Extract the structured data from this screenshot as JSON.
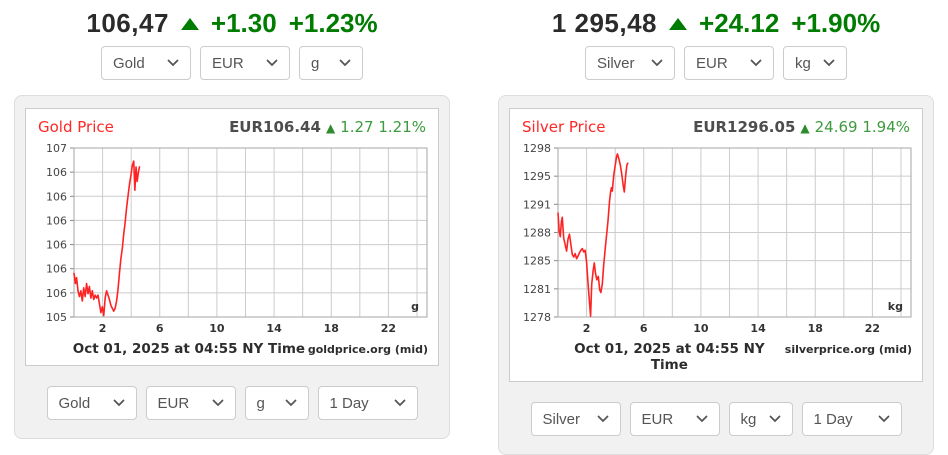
{
  "colors": {
    "quote_green": "#007c00",
    "chart_change_green": "#3d9a3d",
    "chart_title_red": "#ff2626",
    "line_red": "#ff2222",
    "grid_gray": "#cccccc",
    "card_bg": "#f1f1f1"
  },
  "widgets": [
    {
      "id": "gold",
      "quote": {
        "price": "106,47",
        "change": "+1.30",
        "change_pct": "+1.23%"
      },
      "top_selects": [
        "Gold",
        "EUR",
        "g"
      ],
      "bottom_selects": [
        "Gold",
        "EUR",
        "g",
        "1 Day"
      ]
    },
    {
      "id": "silver",
      "quote": {
        "price": "1 295,48",
        "change": "+24.12",
        "change_pct": "+1.90%"
      },
      "top_selects": [
        "Silver",
        "EUR",
        "kg"
      ],
      "bottom_selects": [
        "Silver",
        "EUR",
        "kg",
        "1 Day"
      ]
    }
  ],
  "chart_data": [
    {
      "type": "line",
      "title": "Gold Price",
      "current": "EUR106.44",
      "change": "1.27 1.21%",
      "unit": "g",
      "footer_time": "Oct 01, 2025 at 04:55 NY Time",
      "source": "goldprice.org (mid)",
      "xlim": [
        0,
        24.7
      ],
      "ylim": [
        105.4,
        106.56
      ],
      "x_grid_step": 2,
      "x_ticks": [
        2,
        6,
        10,
        14,
        18,
        22
      ],
      "y_axis_labels_top_to_bottom": [
        "107",
        "106",
        "106",
        "106",
        "106",
        "106",
        "106",
        "105"
      ],
      "x": [
        0,
        0.1,
        0.18,
        0.28,
        0.38,
        0.48,
        0.58,
        0.68,
        0.78,
        0.88,
        0.98,
        1.08,
        1.18,
        1.28,
        1.38,
        1.48,
        1.58,
        1.68,
        1.78,
        1.88,
        1.98,
        2.08,
        2.18,
        2.28,
        2.38,
        2.48,
        2.58,
        2.68,
        2.78,
        2.88,
        2.98,
        3.08,
        3.18,
        3.28,
        3.38,
        3.48,
        3.58,
        3.68,
        3.78,
        3.88,
        3.98,
        4.08,
        4.18,
        4.26,
        4.34,
        4.42,
        4.5,
        4.58
      ],
      "values": [
        105.7,
        105.63,
        105.67,
        105.58,
        105.54,
        105.58,
        105.51,
        105.6,
        105.54,
        105.63,
        105.56,
        105.61,
        105.53,
        105.58,
        105.52,
        105.55,
        105.53,
        105.55,
        105.49,
        105.43,
        105.47,
        105.41,
        105.53,
        105.58,
        105.55,
        105.52,
        105.48,
        105.46,
        105.44,
        105.46,
        105.51,
        105.59,
        105.7,
        105.8,
        105.87,
        105.97,
        106.05,
        106.15,
        106.23,
        106.31,
        106.37,
        106.44,
        106.47,
        106.27,
        106.43,
        106.33,
        106.39,
        106.43
      ]
    },
    {
      "type": "line",
      "title": "Silver Price",
      "current": "EUR1296.05",
      "change": "24.69 1.94%",
      "unit": "kg",
      "footer_time": "Oct 01, 2025 at 04:55 NY Time",
      "source": "silverprice.org (mid)",
      "xlim": [
        0,
        24.7
      ],
      "ylim": [
        1278,
        1298
      ],
      "x_grid_step": 2,
      "x_ticks": [
        2,
        6,
        10,
        14,
        18,
        22
      ],
      "y_axis_labels_top_to_bottom": [
        "1298",
        "1295",
        "1291",
        "1288",
        "1285",
        "1281",
        "1278"
      ],
      "x": [
        0,
        0.08,
        0.16,
        0.24,
        0.3,
        0.4,
        0.5,
        0.6,
        0.7,
        0.8,
        0.9,
        1.0,
        1.1,
        1.2,
        1.3,
        1.4,
        1.5,
        1.6,
        1.7,
        1.8,
        1.9,
        2.0,
        2.1,
        2.2,
        2.28,
        2.36,
        2.46,
        2.54,
        2.62,
        2.72,
        2.82,
        2.92,
        3.0,
        3.1,
        3.2,
        3.3,
        3.4,
        3.5,
        3.6,
        3.68,
        3.74,
        3.8,
        3.9,
        4.0,
        4.1,
        4.16,
        4.26,
        4.36,
        4.46,
        4.56,
        4.64,
        4.74,
        4.82,
        4.88
      ],
      "values": [
        1290.3,
        1288.2,
        1287.5,
        1289.3,
        1289.8,
        1287.3,
        1286.6,
        1285.8,
        1287.2,
        1287.8,
        1286.6,
        1285.4,
        1285.1,
        1285.5,
        1284.9,
        1285.2,
        1285.6,
        1285.9,
        1286.1,
        1285.7,
        1285.9,
        1284.5,
        1282.0,
        1279.8,
        1278.1,
        1281.9,
        1283.5,
        1284.4,
        1283.2,
        1282.4,
        1282.8,
        1281.2,
        1280.9,
        1281.9,
        1284.2,
        1286.0,
        1287.7,
        1289.4,
        1291.6,
        1292.8,
        1293.3,
        1292.9,
        1294.8,
        1295.9,
        1297.0,
        1297.3,
        1296.7,
        1296.0,
        1294.9,
        1293.6,
        1292.8,
        1294.8,
        1296.0,
        1296.2
      ]
    }
  ]
}
